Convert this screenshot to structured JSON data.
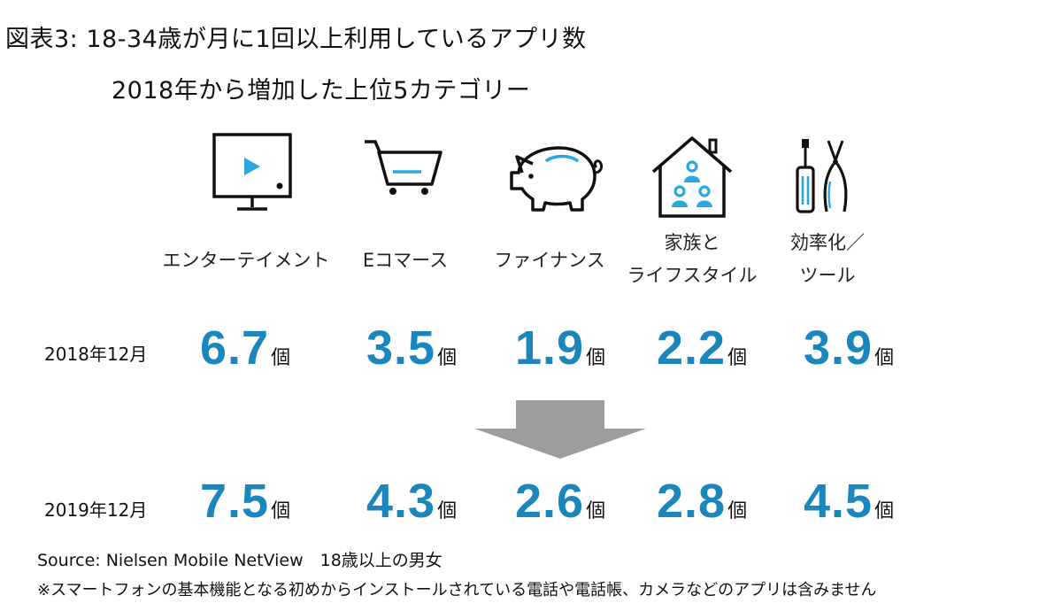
{
  "title": {
    "line1": "図表3:  18-34歳が月に1回以上利用しているアプリ数",
    "line2": "2018年から増加した上位5カテゴリー"
  },
  "icons": [
    "tv-play-icon",
    "shopping-cart-icon",
    "piggy-bank-icon",
    "family-home-icon",
    "tools-icon"
  ],
  "colors": {
    "accent": "#1a86bb",
    "icon_accent": "#29a8e0",
    "arrow": "#9d9d9d"
  },
  "unit": "個",
  "rows": [
    {
      "label": "2018年12月",
      "values": [
        "6.7",
        "3.5",
        "1.9",
        "2.2",
        "3.9"
      ]
    },
    {
      "label": "2019年12月",
      "values": [
        "7.5",
        "4.3",
        "2.6",
        "2.8",
        "4.5"
      ]
    }
  ],
  "chart_data": {
    "type": "table",
    "categories": [
      [
        "エンターテイメント"
      ],
      [
        "Eコマース"
      ],
      [
        "ファイナンス"
      ],
      [
        "家族と",
        "ライフスタイル"
      ],
      [
        "効率化／",
        "ツール"
      ]
    ],
    "series": [
      {
        "name": "2018年12月",
        "values": [
          6.7,
          3.5,
          1.9,
          2.2,
          3.9
        ]
      },
      {
        "name": "2019年12月",
        "values": [
          7.5,
          4.3,
          2.6,
          2.8,
          4.5
        ]
      }
    ]
  },
  "source": "Source: Nielsen Mobile NetView　18歳以上の男女",
  "note": "※スマートフォンの基本機能となる初めからインストールされている電話や電話帳、カメラなどのアプリは含みません"
}
